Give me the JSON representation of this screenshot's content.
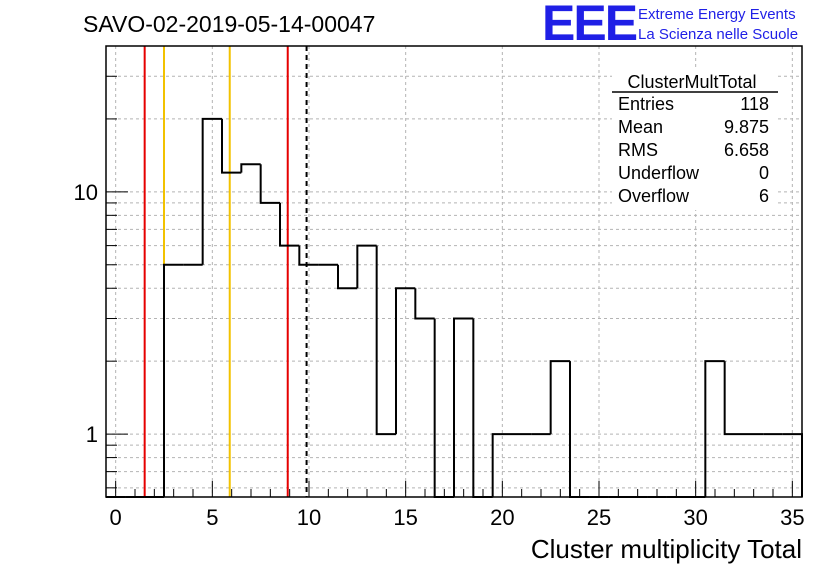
{
  "header": {
    "run_title": "SAVO-02-2019-05-14-00047"
  },
  "logo": {
    "letters": "EEE",
    "line1": "Extreme Energy Events",
    "line2": "La Scienza nelle Scuole",
    "color": "#1f1fe6"
  },
  "stats_box": {
    "title": "ClusterMultTotal",
    "rows": [
      {
        "label": "Entries",
        "value": "118"
      },
      {
        "label": "Mean",
        "value": "9.875"
      },
      {
        "label": "RMS",
        "value": "6.658"
      },
      {
        "label": "Underflow",
        "value": "0"
      },
      {
        "label": "Overflow",
        "value": "6"
      }
    ]
  },
  "chart_data": {
    "type": "histogram",
    "title": "",
    "xlabel": "Cluster multiplicity Total",
    "ylabel": "",
    "xlim": [
      -0.5,
      35.5
    ],
    "ylim": [
      0.55,
      40
    ],
    "yscale": "log",
    "grid": true,
    "x_ticks": [
      0,
      5,
      10,
      15,
      20,
      25,
      30,
      35
    ],
    "y_ticks": [
      {
        "value": 1,
        "label": "1"
      },
      {
        "value": 10,
        "label": "10"
      }
    ],
    "bin_width": 1,
    "bin_centers": [
      0,
      1,
      2,
      3,
      4,
      5,
      6,
      7,
      8,
      9,
      10,
      11,
      12,
      13,
      14,
      15,
      16,
      17,
      18,
      19,
      20,
      21,
      22,
      23,
      24,
      25,
      26,
      27,
      28,
      29,
      30,
      31,
      32,
      33,
      34,
      35
    ],
    "counts": [
      0,
      0,
      0,
      5,
      5,
      20,
      12,
      13,
      9,
      6,
      5,
      5,
      4,
      6,
      1,
      4,
      3,
      0,
      3,
      0,
      1,
      1,
      1,
      2,
      0,
      0,
      0,
      0,
      0,
      0,
      0,
      2,
      1,
      1,
      1,
      1
    ],
    "vertical_lines": [
      {
        "x": 1.5,
        "color": "#e60000",
        "style": "solid"
      },
      {
        "x": 2.5,
        "color": "#f2c200",
        "style": "solid"
      },
      {
        "x": 5.9,
        "color": "#f2c200",
        "style": "solid"
      },
      {
        "x": 8.9,
        "color": "#e60000",
        "style": "solid"
      },
      {
        "x": 9.875,
        "color": "#000000",
        "style": "dashed"
      }
    ],
    "line_color": "#000000",
    "grid_color": "#b4b4b4"
  }
}
